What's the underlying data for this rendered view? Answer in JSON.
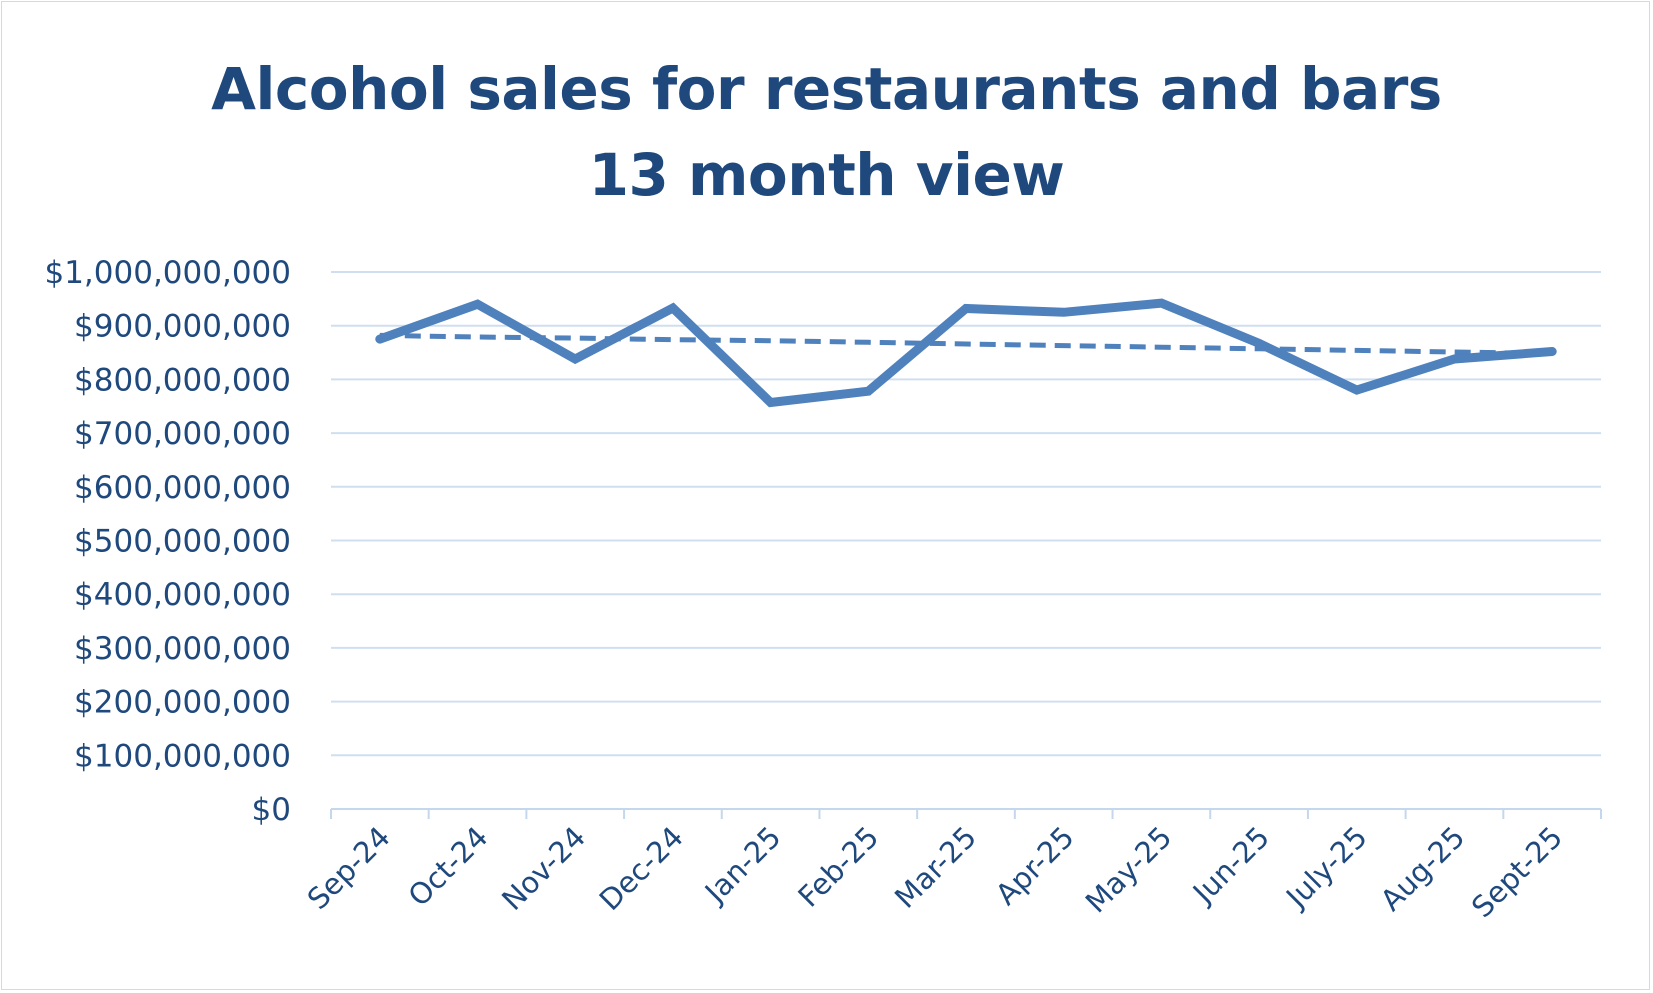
{
  "chart_data": {
    "type": "line",
    "title": "Alcohol sales for restaurants and bars",
    "subtitle": "13 month view",
    "categories": [
      "Sep-24",
      "Oct-24",
      "Nov-24",
      "Dec-24",
      "Jan-25",
      "Feb-25",
      "Mar-25",
      "Apr-25",
      "May-25",
      "Jun-25",
      "July-25",
      "Aug-25",
      "Sept-25"
    ],
    "series": [
      {
        "values": [
          875000000,
          940000000,
          838000000,
          933000000,
          757000000,
          778000000,
          932000000,
          925000000,
          942000000,
          867000000,
          780000000,
          838000000,
          852000000
        ],
        "color": "#4f81bd",
        "style": "solid"
      },
      {
        "values": [
          882000000,
          879000000,
          877000000,
          874000000,
          872000000,
          869000000,
          866000000,
          863000000,
          860000000,
          857000000,
          854000000,
          851000000,
          848000000
        ],
        "color": "#4f81bd",
        "style": "dashed"
      }
    ],
    "ylim": [
      0,
      1000000000
    ],
    "yticks": [
      "$0",
      "$100,000,000",
      "$200,000,000",
      "$300,000,000",
      "$400,000,000",
      "$500,000,000",
      "$600,000,000",
      "$700,000,000",
      "$800,000,000",
      "$900,000,000",
      "$1,000,000,000"
    ],
    "xlabel": "",
    "ylabel": "",
    "grid": true,
    "legend": "none"
  },
  "colors": {
    "text": "#1f497d",
    "line": "#4f81bd",
    "grid": "#d0dff0",
    "axis": "#c5d7ec"
  }
}
